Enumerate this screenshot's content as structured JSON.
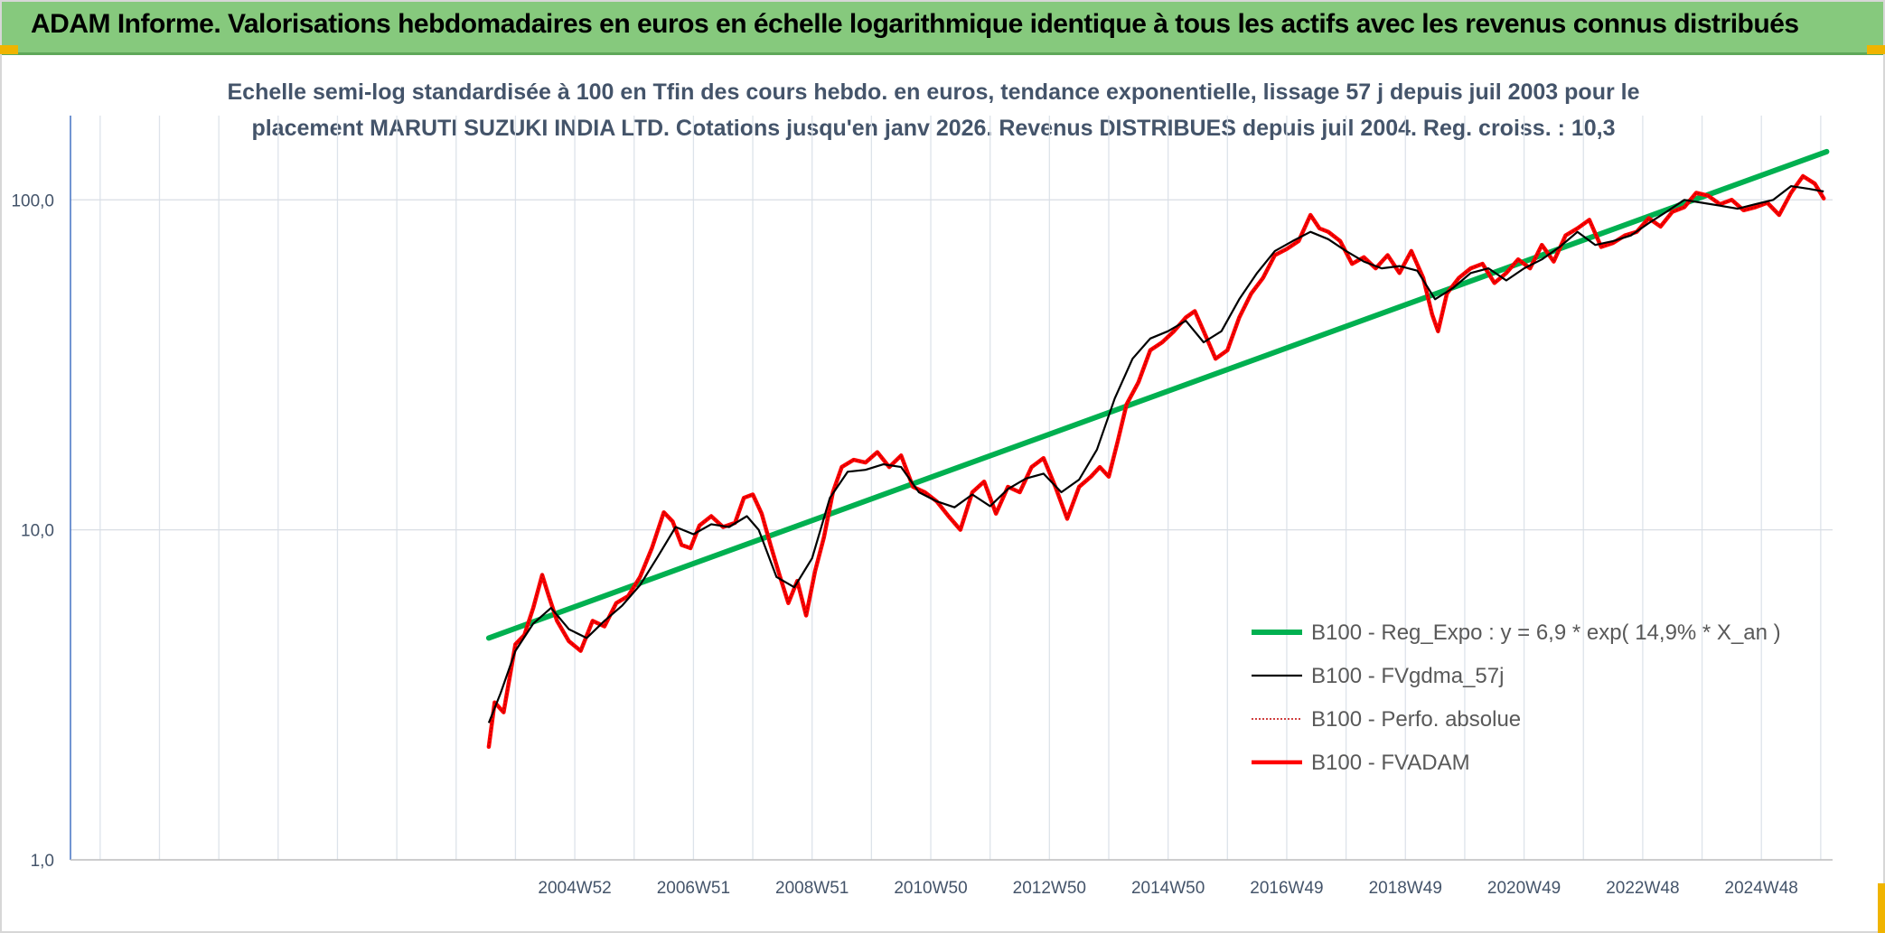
{
  "banner": {
    "title": "ADAM Informe. Valorisations hebdomadaires en euros en échelle logarithmique identique à tous les actifs avec les revenus connus distribués"
  },
  "colors": {
    "banner_bg": "#86c97d",
    "accent_corner": "#f0b400",
    "regression": "#00b050",
    "fvgdma": "#000000",
    "perfo": "#c00000",
    "fvadam": "#ff0000"
  },
  "chart_data": {
    "type": "line",
    "title_lines": [
      "Echelle semi-log standardisée à 100 en Tfin des cours hebdo. en euros, tendance exponentielle, lissage 57 j depuis juil 2003 pour le",
      "placement MARUTI SUZUKI INDIA LTD. Cotations jusqu'en janv 2026. Revenus DISTRIBUES depuis juil 2004. Reg. croiss. : 10,3"
    ],
    "y_scale": "log",
    "ylim": [
      1,
      180
    ],
    "y_ticks": [
      {
        "value": 1,
        "label": "1,0"
      },
      {
        "value": 10,
        "label": "10,0"
      },
      {
        "value": 100,
        "label": "100,0"
      }
    ],
    "xlim": [
      1996.5,
      2026.2
    ],
    "x_ticks": [
      {
        "value": 2005.0,
        "label": "2004W52"
      },
      {
        "value": 2007.0,
        "label": "2006W51"
      },
      {
        "value": 2009.0,
        "label": "2008W51"
      },
      {
        "value": 2011.0,
        "label": "2010W50"
      },
      {
        "value": 2013.0,
        "label": "2012W50"
      },
      {
        "value": 2015.0,
        "label": "2014W50"
      },
      {
        "value": 2017.0,
        "label": "2016W49"
      },
      {
        "value": 2019.0,
        "label": "2018W49"
      },
      {
        "value": 2021.0,
        "label": "2020W49"
      },
      {
        "value": 2023.0,
        "label": "2022W48"
      },
      {
        "value": 2025.0,
        "label": "2024W48"
      }
    ],
    "legend_position": "bottom-right",
    "series": [
      {
        "name": "B100 - Reg_Expo : y = 6,9 * exp( 14,9% *  X_an )",
        "key": "reg",
        "style": "thick-line",
        "color": "#00b050",
        "x": [
          2003.55,
          2026.1
        ],
        "y": [
          4.7,
          140
        ]
      },
      {
        "name": "B100 - FVgdma_57j",
        "key": "fvgdma",
        "style": "thin-line",
        "color": "#000000",
        "x": [
          2003.55,
          2003.75,
          2004.0,
          2004.3,
          2004.6,
          2004.9,
          2005.2,
          2005.5,
          2005.8,
          2006.1,
          2006.4,
          2006.7,
          2007.0,
          2007.3,
          2007.6,
          2007.9,
          2008.1,
          2008.4,
          2008.7,
          2009.0,
          2009.3,
          2009.6,
          2009.9,
          2010.2,
          2010.5,
          2010.8,
          2011.1,
          2011.4,
          2011.7,
          2012.0,
          2012.3,
          2012.6,
          2012.9,
          2013.2,
          2013.5,
          2013.8,
          2014.1,
          2014.4,
          2014.7,
          2015.0,
          2015.3,
          2015.6,
          2015.9,
          2016.2,
          2016.5,
          2016.8,
          2017.1,
          2017.4,
          2017.7,
          2018.0,
          2018.3,
          2018.6,
          2018.9,
          2019.2,
          2019.5,
          2019.8,
          2020.1,
          2020.4,
          2020.7,
          2021.0,
          2021.3,
          2021.6,
          2021.9,
          2022.2,
          2022.5,
          2022.8,
          2023.1,
          2023.4,
          2023.7,
          2024.0,
          2024.3,
          2024.6,
          2024.9,
          2025.2,
          2025.5,
          2025.8,
          2026.05
        ],
        "y": [
          2.6,
          3.2,
          4.3,
          5.2,
          5.8,
          5.0,
          4.7,
          5.3,
          5.9,
          6.8,
          8.3,
          10.2,
          9.7,
          10.4,
          10.2,
          11.0,
          10.0,
          7.2,
          6.7,
          8.2,
          12.5,
          15.0,
          15.2,
          15.8,
          15.5,
          13.0,
          12.2,
          11.7,
          12.8,
          11.8,
          13.3,
          14.3,
          14.8,
          13.0,
          14.2,
          17.5,
          25.0,
          33.0,
          38.0,
          40.0,
          43.0,
          37.0,
          40.0,
          50.0,
          60.0,
          70.0,
          75.0,
          80.0,
          76.0,
          70.0,
          65.0,
          62.0,
          63.0,
          61.0,
          50.0,
          54.0,
          60.0,
          62.0,
          57.0,
          62.0,
          66.0,
          72.0,
          80.0,
          73.0,
          75.0,
          78.0,
          85.0,
          92.0,
          100.0,
          98.0,
          96.0,
          94.0,
          97.0,
          100.0,
          110.0,
          108.0,
          106.0
        ]
      },
      {
        "name": "B100 - Perfo. absolue",
        "key": "perfo",
        "style": "dotted-line",
        "color": "#c00000",
        "x": [
          2003.55,
          2003.65,
          2003.8,
          2004.0,
          2004.15,
          2004.3,
          2004.45,
          2004.55,
          2004.7,
          2004.9,
          2005.1,
          2005.3,
          2005.5,
          2005.7,
          2005.9,
          2006.1,
          2006.3,
          2006.5,
          2006.65,
          2006.8,
          2006.95,
          2007.1,
          2007.3,
          2007.5,
          2007.7,
          2007.85,
          2008.0,
          2008.15,
          2008.3,
          2008.45,
          2008.6,
          2008.75,
          2008.9,
          2009.05,
          2009.2,
          2009.35,
          2009.5,
          2009.7,
          2009.9,
          2010.1,
          2010.3,
          2010.5,
          2010.7,
          2010.9,
          2011.1,
          2011.3,
          2011.5,
          2011.7,
          2011.9,
          2012.1,
          2012.3,
          2012.5,
          2012.7,
          2012.9,
          2013.1,
          2013.3,
          2013.5,
          2013.7,
          2013.85,
          2014.0,
          2014.15,
          2014.3,
          2014.5,
          2014.7,
          2014.9,
          2015.1,
          2015.3,
          2015.45,
          2015.6,
          2015.8,
          2016.0,
          2016.2,
          2016.4,
          2016.6,
          2016.8,
          2017.0,
          2017.2,
          2017.4,
          2017.55,
          2017.7,
          2017.9,
          2018.1,
          2018.3,
          2018.5,
          2018.7,
          2018.9,
          2019.1,
          2019.3,
          2019.45,
          2019.55,
          2019.7,
          2019.9,
          2020.1,
          2020.3,
          2020.5,
          2020.7,
          2020.9,
          2021.1,
          2021.3,
          2021.5,
          2021.7,
          2021.9,
          2022.1,
          2022.3,
          2022.5,
          2022.7,
          2022.9,
          2023.1,
          2023.3,
          2023.5,
          2023.7,
          2023.9,
          2024.1,
          2024.3,
          2024.5,
          2024.7,
          2024.9,
          2025.1,
          2025.3,
          2025.5,
          2025.7,
          2025.9,
          2026.05
        ],
        "y": [
          2.2,
          3.0,
          2.8,
          4.5,
          4.8,
          5.8,
          7.3,
          6.4,
          5.3,
          4.6,
          4.3,
          5.3,
          5.1,
          6.0,
          6.3,
          7.2,
          8.8,
          11.3,
          10.6,
          9.0,
          8.8,
          10.3,
          11.0,
          10.2,
          10.5,
          12.5,
          12.8,
          11.2,
          9.0,
          7.3,
          6.0,
          7.0,
          5.5,
          7.5,
          9.5,
          13.0,
          15.5,
          16.3,
          16.0,
          17.2,
          15.5,
          16.8,
          13.5,
          13.0,
          12.2,
          11.0,
          10.0,
          13.0,
          14.0,
          11.2,
          13.5,
          13.0,
          15.5,
          16.5,
          13.5,
          10.8,
          13.5,
          14.5,
          15.5,
          14.5,
          18.5,
          24.0,
          28.0,
          35.0,
          37.0,
          40.0,
          44.0,
          46.0,
          40.0,
          33.0,
          35.0,
          44.0,
          52.0,
          58.0,
          68.0,
          71.0,
          75.0,
          90.0,
          82.0,
          80.0,
          75.0,
          64.0,
          67.0,
          62.0,
          68.0,
          60.0,
          70.0,
          58.0,
          45.0,
          40.0,
          52.0,
          58.0,
          62.0,
          64.0,
          56.0,
          60.0,
          66.0,
          62.0,
          73.0,
          65.0,
          78.0,
          82.0,
          87.0,
          72.0,
          74.0,
          78.0,
          80.0,
          88.0,
          83.0,
          92.0,
          95.0,
          105.0,
          103.0,
          97.0,
          100.0,
          93.0,
          95.0,
          98.0,
          90.0,
          105.0,
          118.0,
          112.0,
          101.0
        ]
      },
      {
        "name": "B100 - FVADAM",
        "key": "fvadam",
        "style": "thick-line",
        "color": "#ff0000",
        "x": [
          2003.55,
          2003.65,
          2003.8,
          2004.0,
          2004.15,
          2004.3,
          2004.45,
          2004.55,
          2004.7,
          2004.9,
          2005.1,
          2005.3,
          2005.5,
          2005.7,
          2005.9,
          2006.1,
          2006.3,
          2006.5,
          2006.65,
          2006.8,
          2006.95,
          2007.1,
          2007.3,
          2007.5,
          2007.7,
          2007.85,
          2008.0,
          2008.15,
          2008.3,
          2008.45,
          2008.6,
          2008.75,
          2008.9,
          2009.05,
          2009.2,
          2009.35,
          2009.5,
          2009.7,
          2009.9,
          2010.1,
          2010.3,
          2010.5,
          2010.7,
          2010.9,
          2011.1,
          2011.3,
          2011.5,
          2011.7,
          2011.9,
          2012.1,
          2012.3,
          2012.5,
          2012.7,
          2012.9,
          2013.1,
          2013.3,
          2013.5,
          2013.7,
          2013.85,
          2014.0,
          2014.15,
          2014.3,
          2014.5,
          2014.7,
          2014.9,
          2015.1,
          2015.3,
          2015.45,
          2015.6,
          2015.8,
          2016.0,
          2016.2,
          2016.4,
          2016.6,
          2016.8,
          2017.0,
          2017.2,
          2017.4,
          2017.55,
          2017.7,
          2017.9,
          2018.1,
          2018.3,
          2018.5,
          2018.7,
          2018.9,
          2019.1,
          2019.3,
          2019.45,
          2019.55,
          2019.7,
          2019.9,
          2020.1,
          2020.3,
          2020.5,
          2020.7,
          2020.9,
          2021.1,
          2021.3,
          2021.5,
          2021.7,
          2021.9,
          2022.1,
          2022.3,
          2022.5,
          2022.7,
          2022.9,
          2023.1,
          2023.3,
          2023.5,
          2023.7,
          2023.9,
          2024.1,
          2024.3,
          2024.5,
          2024.7,
          2024.9,
          2025.1,
          2025.3,
          2025.5,
          2025.7,
          2025.9,
          2026.05
        ],
        "y": [
          2.2,
          3.0,
          2.8,
          4.5,
          4.8,
          5.8,
          7.3,
          6.4,
          5.3,
          4.6,
          4.3,
          5.3,
          5.1,
          6.0,
          6.3,
          7.2,
          8.8,
          11.3,
          10.6,
          9.0,
          8.8,
          10.3,
          11.0,
          10.2,
          10.5,
          12.5,
          12.8,
          11.2,
          9.0,
          7.3,
          6.0,
          7.0,
          5.5,
          7.5,
          9.5,
          13.0,
          15.5,
          16.3,
          16.0,
          17.2,
          15.5,
          16.8,
          13.5,
          13.0,
          12.2,
          11.0,
          10.0,
          13.0,
          14.0,
          11.2,
          13.5,
          13.0,
          15.5,
          16.5,
          13.5,
          10.8,
          13.5,
          14.5,
          15.5,
          14.5,
          18.5,
          24.0,
          28.0,
          35.0,
          37.0,
          40.0,
          44.0,
          46.0,
          40.0,
          33.0,
          35.0,
          44.0,
          52.0,
          58.0,
          68.0,
          71.0,
          75.0,
          90.0,
          82.0,
          80.0,
          75.0,
          64.0,
          67.0,
          62.0,
          68.0,
          60.0,
          70.0,
          58.0,
          45.0,
          40.0,
          52.0,
          58.0,
          62.0,
          64.0,
          56.0,
          60.0,
          66.0,
          62.0,
          73.0,
          65.0,
          78.0,
          82.0,
          87.0,
          72.0,
          74.0,
          78.0,
          80.0,
          88.0,
          83.0,
          92.0,
          95.0,
          105.0,
          103.0,
          97.0,
          100.0,
          93.0,
          95.0,
          98.0,
          90.0,
          105.0,
          118.0,
          112.0,
          101.0
        ]
      }
    ]
  }
}
